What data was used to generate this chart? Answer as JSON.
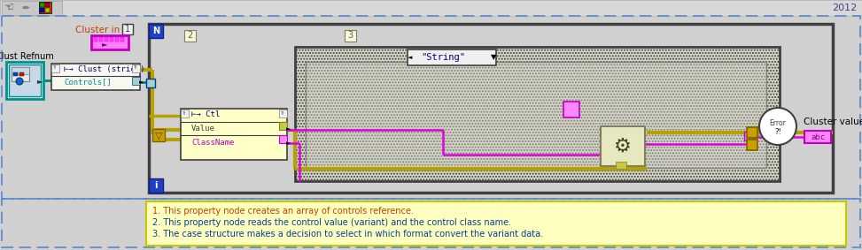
{
  "bg_color": "#d0d0d0",
  "toolbar_bg": "#c8c8c8",
  "diagram_bg": "#c8c8c8",
  "wire_yellow": "#b8a000",
  "wire_magenta": "#e000e0",
  "wire_cyan": "#008080",
  "node_bg": "#ffffc8",
  "node_border": "#404040",
  "label_orange": "#c04000",
  "label_cyan": "#008080",
  "label_magenta": "#c000c0",
  "title_2012": "2012",
  "note_line1": "1. This property node creates an array of controls reference.",
  "note_line2": "2. This property node reads the control value (variant) and the control class name.",
  "note_line3": "3. The case structure makes a decision to select in which format convert the variant data.",
  "note_bg": "#ffffc0",
  "note_border": "#c8c800",
  "loop_border": "#606060",
  "case_checkered": "#606060",
  "badge_blue": "#2040c0",
  "badge_yellow": "#c8a000"
}
